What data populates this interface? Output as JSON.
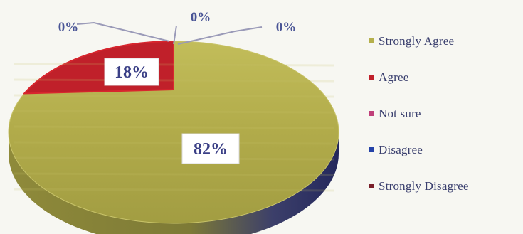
{
  "chart_data": {
    "type": "pie",
    "categories": [
      "Strongly Agree",
      "Agree",
      "Not sure",
      "Disagree",
      "Strongly Disagree"
    ],
    "values": [
      82,
      18,
      0,
      0,
      0
    ],
    "labels": [
      "82%",
      "18%",
      "0%",
      "0%",
      "0%"
    ],
    "colors": [
      "#b5b04c",
      "#c0202a",
      "#c0407a",
      "#2442a8",
      "#7a1f2a"
    ],
    "legend_position": "right"
  }
}
